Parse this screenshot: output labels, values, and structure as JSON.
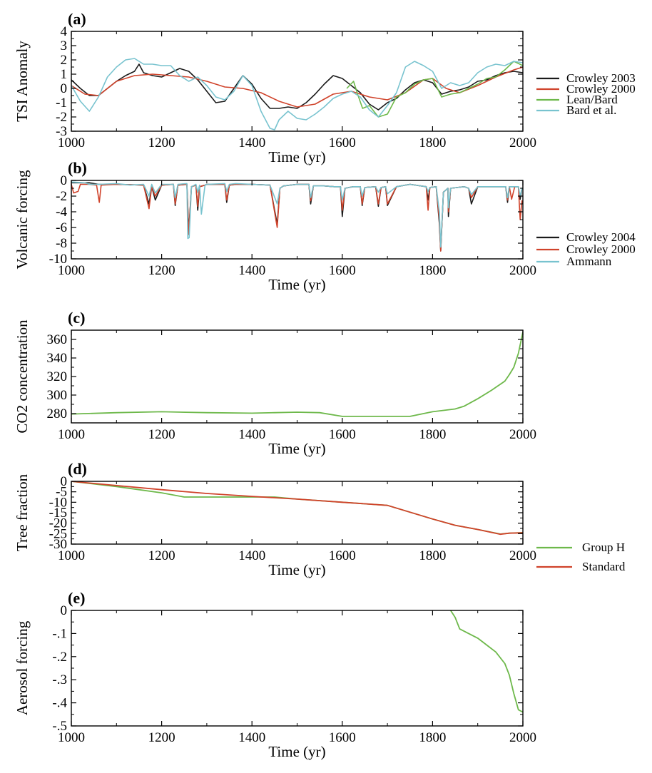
{
  "chart_data": [
    {
      "type": "line",
      "panel_label": "(a)",
      "xlabel": "Time (yr)",
      "ylabel": "TSI Anomaly",
      "xlim": [
        1000,
        2000
      ],
      "ylim": [
        -3,
        4
      ],
      "xticks": [
        1000,
        1200,
        1400,
        1600,
        1800,
        2000
      ],
      "yticks": [
        -3,
        -2,
        -1,
        0,
        1,
        2,
        3,
        4
      ],
      "legend_position": "right",
      "series": [
        {
          "name": "Crowley 2003",
          "color": "#1a1a1a",
          "x": [
            1000,
            1020,
            1040,
            1060,
            1080,
            1100,
            1120,
            1140,
            1150,
            1160,
            1180,
            1200,
            1220,
            1240,
            1260,
            1280,
            1300,
            1320,
            1340,
            1360,
            1380,
            1400,
            1420,
            1440,
            1460,
            1480,
            1500,
            1520,
            1540,
            1560,
            1580,
            1600,
            1620,
            1640,
            1660,
            1680,
            1700,
            1720,
            1740,
            1760,
            1780,
            1800,
            1820,
            1840,
            1860,
            1880,
            1900,
            1920,
            1940,
            1960,
            1980,
            2000
          ],
          "y": [
            0.6,
            0.0,
            -0.5,
            -0.5,
            0.0,
            0.5,
            0.9,
            1.2,
            1.7,
            1.1,
            0.9,
            0.8,
            1.1,
            1.4,
            1.2,
            0.6,
            -0.2,
            -1.0,
            -0.9,
            0.0,
            0.9,
            0.3,
            -0.7,
            -1.4,
            -1.4,
            -1.3,
            -1.4,
            -1.0,
            -0.4,
            0.3,
            0.9,
            0.7,
            0.2,
            -0.3,
            -1.1,
            -1.5,
            -1.0,
            -0.7,
            -0.1,
            0.4,
            0.6,
            0.4,
            -0.4,
            -0.2,
            -0.1,
            0.1,
            0.5,
            0.6,
            0.9,
            1.1,
            1.2,
            1.1
          ]
        },
        {
          "name": "Crowley 2000",
          "color": "#d0432b",
          "x": [
            1000,
            1030,
            1060,
            1100,
            1140,
            1180,
            1220,
            1260,
            1300,
            1340,
            1380,
            1420,
            1460,
            1500,
            1540,
            1580,
            1620,
            1660,
            1700,
            1740,
            1780,
            1800,
            1830,
            1860,
            1900,
            1940,
            1980,
            2000
          ],
          "y": [
            0.2,
            -0.4,
            -0.5,
            0.5,
            0.9,
            1.0,
            0.9,
            0.8,
            0.5,
            0.1,
            0.0,
            -0.3,
            -0.9,
            -1.3,
            -1.1,
            -0.4,
            -0.2,
            -0.6,
            -0.8,
            -0.3,
            0.6,
            0.7,
            0.0,
            -0.3,
            0.2,
            0.8,
            1.3,
            1.5
          ]
        },
        {
          "name": "Lean/Bard",
          "color": "#6db84a",
          "x": [
            1610,
            1625,
            1635,
            1645,
            1660,
            1680,
            1700,
            1720,
            1740,
            1760,
            1780,
            1800,
            1820,
            1840,
            1860,
            1880,
            1900,
            1920,
            1940,
            1960,
            1980,
            2000
          ],
          "y": [
            0.0,
            0.5,
            -0.5,
            -1.4,
            -1.2,
            -2.0,
            -1.8,
            -0.6,
            -0.3,
            0.3,
            0.6,
            0.7,
            -0.6,
            -0.4,
            -0.3,
            0.0,
            0.3,
            0.7,
            0.8,
            1.3,
            1.9,
            1.6
          ]
        },
        {
          "name": "Bard et al.",
          "color": "#78c3cf",
          "x": [
            1000,
            1020,
            1040,
            1060,
            1080,
            1100,
            1120,
            1140,
            1160,
            1180,
            1200,
            1220,
            1240,
            1260,
            1280,
            1300,
            1320,
            1340,
            1360,
            1380,
            1400,
            1420,
            1440,
            1450,
            1460,
            1480,
            1500,
            1520,
            1540,
            1560,
            1580,
            1600,
            1620,
            1640,
            1660,
            1680,
            1700,
            1720,
            1740,
            1760,
            1780,
            1800,
            1820,
            1840,
            1860,
            1880,
            1900,
            1920,
            1940,
            1960,
            1980,
            2000
          ],
          "y": [
            0.2,
            -0.9,
            -1.6,
            -0.6,
            0.8,
            1.5,
            2.0,
            2.1,
            1.7,
            1.7,
            1.6,
            1.6,
            0.9,
            0.5,
            0.8,
            0.2,
            -0.6,
            -0.8,
            -0.2,
            0.9,
            0.2,
            -1.6,
            -2.8,
            -2.9,
            -2.2,
            -1.6,
            -2.1,
            -2.2,
            -1.8,
            -1.3,
            -0.7,
            -0.4,
            -0.2,
            -0.6,
            -1.5,
            -2.0,
            -1.2,
            -0.3,
            1.5,
            1.9,
            1.6,
            1.2,
            0.0,
            0.4,
            0.2,
            0.4,
            1.1,
            1.5,
            1.7,
            1.6,
            1.9,
            1.8
          ]
        }
      ]
    },
    {
      "type": "line",
      "panel_label": "(b)",
      "xlabel": "Time (yr)",
      "ylabel": "Volcanic forcing",
      "xlim": [
        1000,
        2000
      ],
      "ylim": [
        -10,
        0
      ],
      "xticks": [
        1000,
        1200,
        1400,
        1600,
        1800,
        2000
      ],
      "yticks": [
        -10,
        -8,
        -6,
        -4,
        -2,
        0
      ],
      "legend_position": "right",
      "series": [
        {
          "name": "Crowley 2004",
          "color": "#1a1a1a",
          "x": [
            1000,
            1040,
            1060,
            1100,
            1160,
            1172,
            1178,
            1186,
            1200,
            1226,
            1230,
            1236,
            1256,
            1260,
            1266,
            1276,
            1280,
            1284,
            1296,
            1300,
            1340,
            1344,
            1350,
            1364,
            1400,
            1440,
            1456,
            1462,
            1470,
            1500,
            1526,
            1530,
            1536,
            1560,
            1582,
            1596,
            1600,
            1606,
            1624,
            1640,
            1644,
            1650,
            1674,
            1680,
            1686,
            1696,
            1700,
            1720,
            1750,
            1786,
            1790,
            1794,
            1808,
            1815,
            1818,
            1824,
            1834,
            1835,
            1840,
            1870,
            1880,
            1886,
            1900,
            1950,
            1962,
            1966,
            1970,
            1990,
            1994,
            1998,
            2000
          ],
          "y": [
            -0.3,
            -0.3,
            -0.5,
            -0.5,
            -0.6,
            -3.0,
            -0.8,
            -2.5,
            -0.6,
            -0.5,
            -3.2,
            -0.6,
            -0.5,
            -6.5,
            -0.8,
            -0.6,
            -3.8,
            -0.8,
            -0.6,
            -0.5,
            -0.5,
            -2.8,
            -0.6,
            -0.5,
            -0.5,
            -0.6,
            -5.6,
            -1.0,
            -0.7,
            -0.5,
            -0.5,
            -3.0,
            -0.7,
            -0.7,
            -0.8,
            -0.8,
            -4.6,
            -1.0,
            -0.8,
            -0.8,
            -3.2,
            -0.9,
            -0.8,
            -3.3,
            -0.9,
            -0.8,
            -3.2,
            -0.8,
            -0.5,
            -0.8,
            -2.5,
            -0.9,
            -0.8,
            -5.5,
            -9.0,
            -1.5,
            -1.0,
            -4.6,
            -1.0,
            -0.8,
            -1.0,
            -3.0,
            -0.8,
            -0.8,
            -0.8,
            -2.8,
            -0.8,
            -0.8,
            -2.4,
            -1.0,
            -1.0
          ]
        },
        {
          "name": "Crowley 2000",
          "color": "#d0432b",
          "x": [
            1000,
            1005,
            1015,
            1020,
            1040,
            1056,
            1062,
            1066,
            1100,
            1160,
            1172,
            1178,
            1186,
            1200,
            1226,
            1230,
            1236,
            1256,
            1260,
            1266,
            1276,
            1280,
            1284,
            1296,
            1300,
            1340,
            1344,
            1350,
            1364,
            1400,
            1440,
            1456,
            1462,
            1470,
            1500,
            1526,
            1530,
            1536,
            1560,
            1582,
            1596,
            1600,
            1606,
            1624,
            1640,
            1644,
            1650,
            1674,
            1680,
            1686,
            1696,
            1700,
            1720,
            1750,
            1786,
            1790,
            1794,
            1808,
            1815,
            1818,
            1824,
            1834,
            1835,
            1840,
            1870,
            1880,
            1886,
            1900,
            1950,
            1962,
            1966,
            1970,
            1975,
            1982,
            1990,
            1994,
            1998,
            2000
          ],
          "y": [
            -0.5,
            -1.6,
            -1.4,
            -0.5,
            -0.5,
            -0.6,
            -2.8,
            -0.6,
            -0.5,
            -0.6,
            -3.6,
            -0.8,
            -2.0,
            -0.6,
            -0.5,
            -3.0,
            -0.6,
            -0.5,
            -6.9,
            -0.8,
            -0.6,
            -3.3,
            -0.8,
            -0.6,
            -0.5,
            -0.5,
            -2.5,
            -0.6,
            -0.5,
            -0.5,
            -0.6,
            -6.0,
            -1.0,
            -0.7,
            -0.5,
            -0.5,
            -2.6,
            -0.7,
            -0.7,
            -0.8,
            -0.8,
            -3.8,
            -1.0,
            -0.8,
            -0.8,
            -3.0,
            -0.9,
            -0.8,
            -3.0,
            -0.9,
            -0.8,
            -3.0,
            -0.8,
            -0.5,
            -0.8,
            -3.8,
            -0.9,
            -0.8,
            -5.0,
            -9.0,
            -1.5,
            -1.0,
            -4.0,
            -1.0,
            -0.8,
            -1.0,
            -2.2,
            -0.8,
            -0.8,
            -0.8,
            -2.5,
            -0.8,
            -2.4,
            -0.8,
            -0.8,
            -5.0,
            -2.6,
            -3.0
          ]
        },
        {
          "name": "Ammann",
          "color": "#78c3cf",
          "x": [
            1000,
            1030,
            1040,
            1060,
            1100,
            1130,
            1160,
            1172,
            1178,
            1186,
            1200,
            1226,
            1230,
            1236,
            1256,
            1258,
            1261,
            1266,
            1276,
            1280,
            1284,
            1288,
            1296,
            1300,
            1340,
            1344,
            1350,
            1364,
            1400,
            1440,
            1456,
            1462,
            1470,
            1500,
            1526,
            1530,
            1536,
            1560,
            1582,
            1596,
            1600,
            1606,
            1624,
            1640,
            1644,
            1650,
            1674,
            1680,
            1686,
            1696,
            1700,
            1720,
            1750,
            1786,
            1790,
            1794,
            1808,
            1815,
            1818,
            1824,
            1834,
            1835,
            1840,
            1870,
            1880,
            1886,
            1900,
            1950,
            1962,
            1966,
            1970,
            1990,
            1994,
            1998,
            2000
          ],
          "y": [
            -0.2,
            -0.3,
            -0.5,
            -0.5,
            -0.4,
            -0.6,
            -0.5,
            -2.0,
            -0.5,
            -1.6,
            -0.5,
            -0.5,
            -2.2,
            -0.5,
            -0.4,
            -7.4,
            -7.3,
            -0.8,
            -0.5,
            -1.5,
            -0.6,
            -4.3,
            -0.6,
            -0.5,
            -0.4,
            -1.4,
            -0.5,
            -0.4,
            -0.5,
            -0.6,
            -3.0,
            -1.0,
            -0.7,
            -0.5,
            -0.5,
            -2.2,
            -0.7,
            -0.7,
            -0.8,
            -0.8,
            -2.5,
            -1.0,
            -0.8,
            -0.8,
            -2.0,
            -0.9,
            -0.8,
            -1.5,
            -0.9,
            -0.8,
            -1.7,
            -0.8,
            -0.5,
            -0.8,
            -1.4,
            -0.9,
            -0.8,
            -4.0,
            -8.5,
            -1.5,
            -1.0,
            -3.5,
            -1.0,
            -0.8,
            -1.0,
            -1.8,
            -0.8,
            -0.8,
            -0.8,
            -2.2,
            -0.8,
            -0.8,
            -2.0,
            -1.0,
            -1.0
          ]
        }
      ]
    },
    {
      "type": "line",
      "panel_label": "(c)",
      "xlabel": "Time (yr)",
      "ylabel": "CO2 concentration",
      "xlim": [
        1000,
        2000
      ],
      "ylim": [
        270,
        370
      ],
      "xticks": [
        1000,
        1200,
        1400,
        1600,
        1800,
        2000
      ],
      "yticks": [
        280,
        300,
        320,
        340,
        360
      ],
      "series": [
        {
          "color": "#6db84a",
          "x": [
            1000,
            1100,
            1200,
            1300,
            1400,
            1450,
            1500,
            1550,
            1600,
            1650,
            1700,
            1750,
            1800,
            1850,
            1870,
            1900,
            1930,
            1960,
            1970,
            1980,
            1990,
            2000
          ],
          "y": [
            279.5,
            281,
            282,
            281,
            280.5,
            281,
            281.5,
            281,
            277,
            277,
            277,
            277,
            282,
            285,
            288,
            296,
            305,
            315,
            322,
            330,
            345,
            368
          ]
        }
      ]
    },
    {
      "type": "line",
      "panel_label": "(d)",
      "xlabel": "Time (yr)",
      "ylabel": "Tree fraction",
      "xlim": [
        1000,
        2000
      ],
      "ylim": [
        -30,
        0
      ],
      "xticks": [
        1000,
        1200,
        1400,
        1600,
        1800,
        2000
      ],
      "yticks": [
        -30,
        -25,
        -20,
        -15,
        -10,
        -5,
        0
      ],
      "legend_position": "right",
      "series": [
        {
          "name": "Group H",
          "color": "#6db84a",
          "x": [
            1000,
            1100,
            1200,
            1250,
            1300,
            1400,
            1450,
            1500,
            1600,
            1700,
            1800,
            1850,
            1900,
            1950,
            1970,
            2000
          ],
          "y": [
            0,
            -2.5,
            -5.5,
            -7.5,
            -7.5,
            -7.5,
            -7.5,
            -8.5,
            -10.0,
            -11.5,
            -18.0,
            -21.0,
            -23.0,
            -25.2,
            -24.8,
            -24.5
          ]
        },
        {
          "name": "Standard",
          "color": "#d0432b",
          "x": [
            1000,
            1100,
            1200,
            1300,
            1400,
            1500,
            1600,
            1700,
            1800,
            1850,
            1900,
            1950,
            1970,
            2000
          ],
          "y": [
            0,
            -2.0,
            -4.0,
            -5.8,
            -7.2,
            -8.5,
            -10.0,
            -11.5,
            -18.0,
            -21.0,
            -23.0,
            -25.3,
            -24.8,
            -24.6
          ]
        }
      ]
    },
    {
      "type": "line",
      "panel_label": "(e)",
      "xlabel": "Time (yr)",
      "ylabel": "Aerosol forcing",
      "xlim": [
        1000,
        2000
      ],
      "ylim": [
        -0.5,
        0
      ],
      "xticks": [
        1000,
        1200,
        1400,
        1600,
        1800,
        2000
      ],
      "yticks": [
        -0.5,
        -0.4,
        -0.3,
        -0.2,
        -0.1,
        0
      ],
      "series": [
        {
          "color": "#6db84a",
          "x": [
            1840,
            1850,
            1860,
            1880,
            1900,
            1920,
            1940,
            1960,
            1970,
            1980,
            1990,
            2000
          ],
          "y": [
            0,
            -0.03,
            -0.08,
            -0.1,
            -0.12,
            -0.15,
            -0.18,
            -0.23,
            -0.28,
            -0.36,
            -0.43,
            -0.44
          ]
        }
      ]
    }
  ]
}
